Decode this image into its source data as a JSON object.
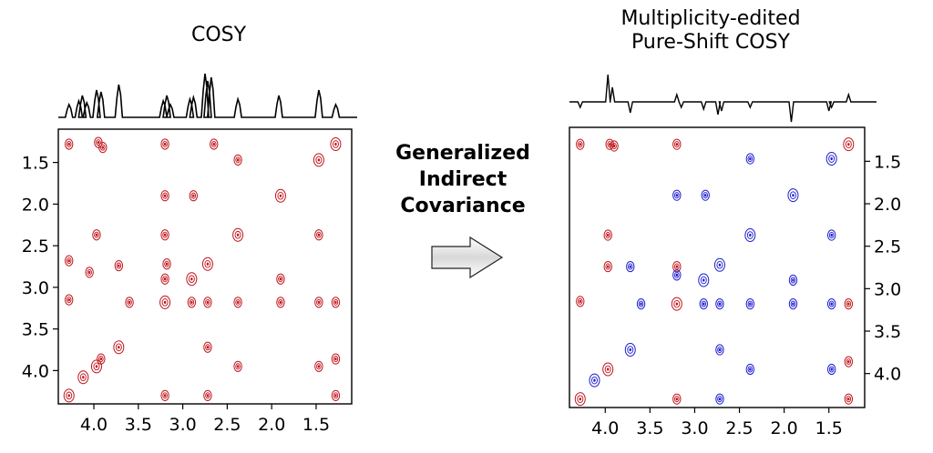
{
  "left_panel": {
    "title": "COSY"
  },
  "right_panel": {
    "title_line1": "Multiplicity-edited",
    "title_line2": "Pure-Shift COSY"
  },
  "center": {
    "line1": "Generalized",
    "line2": "Indirect",
    "line3": "Covariance"
  },
  "colors": {
    "positive": "#c0141b",
    "negative": "#1c1ccf",
    "trace": "#000000"
  },
  "chart_data": [
    {
      "type": "heatmap",
      "title": "COSY",
      "x_ticks": [
        "4.0",
        "3.5",
        "3.0",
        "2.5",
        "2.0",
        "1.5"
      ],
      "y_ticks": [
        "1.5",
        "2.0",
        "2.5",
        "3.0",
        "3.5",
        "4.0"
      ],
      "x_tick_values": [
        4.0,
        3.5,
        3.0,
        2.5,
        2.0,
        1.5
      ],
      "y_tick_values": [
        1.5,
        2.0,
        2.5,
        3.0,
        3.5,
        4.0
      ],
      "xlim": [
        4.4,
        1.1
      ],
      "ylim": [
        1.1,
        4.4
      ],
      "peaks": [
        {
          "x": 4.28,
          "y": 1.28
        },
        {
          "x": 3.95,
          "y": 1.26
        },
        {
          "x": 3.9,
          "y": 1.32
        },
        {
          "x": 3.2,
          "y": 1.28
        },
        {
          "x": 2.65,
          "y": 1.28
        },
        {
          "x": 1.28,
          "y": 1.28
        },
        {
          "x": 2.38,
          "y": 1.47
        },
        {
          "x": 1.47,
          "y": 1.47
        },
        {
          "x": 3.2,
          "y": 1.9
        },
        {
          "x": 2.88,
          "y": 1.9
        },
        {
          "x": 1.9,
          "y": 1.9
        },
        {
          "x": 3.97,
          "y": 2.37
        },
        {
          "x": 3.2,
          "y": 2.37
        },
        {
          "x": 2.38,
          "y": 2.37
        },
        {
          "x": 1.47,
          "y": 2.37
        },
        {
          "x": 4.28,
          "y": 2.68
        },
        {
          "x": 3.72,
          "y": 2.74
        },
        {
          "x": 3.18,
          "y": 2.72
        },
        {
          "x": 2.72,
          "y": 2.72
        },
        {
          "x": 4.05,
          "y": 2.82
        },
        {
          "x": 3.2,
          "y": 2.9
        },
        {
          "x": 2.9,
          "y": 2.9
        },
        {
          "x": 1.9,
          "y": 2.9
        },
        {
          "x": 4.28,
          "y": 3.15
        },
        {
          "x": 3.6,
          "y": 3.18
        },
        {
          "x": 3.2,
          "y": 3.18
        },
        {
          "x": 2.9,
          "y": 3.18
        },
        {
          "x": 2.72,
          "y": 3.18
        },
        {
          "x": 2.38,
          "y": 3.18
        },
        {
          "x": 1.9,
          "y": 3.18
        },
        {
          "x": 1.47,
          "y": 3.18
        },
        {
          "x": 1.28,
          "y": 3.18
        },
        {
          "x": 3.72,
          "y": 3.72
        },
        {
          "x": 2.72,
          "y": 3.72
        },
        {
          "x": 3.92,
          "y": 3.86
        },
        {
          "x": 3.97,
          "y": 3.95
        },
        {
          "x": 2.38,
          "y": 3.95
        },
        {
          "x": 1.47,
          "y": 3.95
        },
        {
          "x": 1.28,
          "y": 3.86
        },
        {
          "x": 4.12,
          "y": 4.08
        },
        {
          "x": 4.28,
          "y": 4.3
        },
        {
          "x": 3.2,
          "y": 4.3
        },
        {
          "x": 2.72,
          "y": 4.3
        },
        {
          "x": 1.28,
          "y": 4.3
        }
      ]
    },
    {
      "type": "heatmap",
      "title": "Multiplicity-edited Pure-Shift COSY",
      "x_ticks": [
        "4.0",
        "3.5",
        "3.0",
        "2.5",
        "2.0",
        "1.5"
      ],
      "y_ticks": [
        "1.5",
        "2.0",
        "2.5",
        "3.0",
        "3.5",
        "4.0"
      ],
      "x_tick_values": [
        4.0,
        3.5,
        3.0,
        2.5,
        2.0,
        1.5
      ],
      "y_tick_values": [
        1.5,
        2.0,
        2.5,
        3.0,
        3.5,
        4.0
      ],
      "xlim": [
        4.4,
        1.1
      ],
      "ylim": [
        1.1,
        4.4
      ],
      "series": [
        {
          "sign": "positive",
          "peaks": [
            {
              "x": 4.28,
              "y": 1.3
            },
            {
              "x": 3.95,
              "y": 1.3
            },
            {
              "x": 3.9,
              "y": 1.32
            },
            {
              "x": 3.2,
              "y": 1.3
            },
            {
              "x": 1.28,
              "y": 1.3
            },
            {
              "x": 3.97,
              "y": 2.37
            },
            {
              "x": 3.97,
              "y": 2.74
            },
            {
              "x": 3.2,
              "y": 2.74
            },
            {
              "x": 4.28,
              "y": 3.15
            },
            {
              "x": 3.2,
              "y": 3.18
            },
            {
              "x": 1.28,
              "y": 3.18
            },
            {
              "x": 3.97,
              "y": 3.95
            },
            {
              "x": 4.28,
              "y": 4.3
            },
            {
              "x": 3.2,
              "y": 4.3
            },
            {
              "x": 1.28,
              "y": 4.3
            },
            {
              "x": 1.28,
              "y": 3.86
            }
          ]
        },
        {
          "sign": "negative",
          "peaks": [
            {
              "x": 2.38,
              "y": 1.47
            },
            {
              "x": 1.47,
              "y": 1.47
            },
            {
              "x": 3.2,
              "y": 1.9
            },
            {
              "x": 2.88,
              "y": 1.9
            },
            {
              "x": 1.9,
              "y": 1.9
            },
            {
              "x": 2.38,
              "y": 2.37
            },
            {
              "x": 1.47,
              "y": 2.37
            },
            {
              "x": 3.72,
              "y": 2.74
            },
            {
              "x": 3.2,
              "y": 2.84
            },
            {
              "x": 2.9,
              "y": 2.9
            },
            {
              "x": 2.72,
              "y": 2.72
            },
            {
              "x": 1.9,
              "y": 2.9
            },
            {
              "x": 3.6,
              "y": 3.18
            },
            {
              "x": 2.9,
              "y": 3.18
            },
            {
              "x": 2.72,
              "y": 3.18
            },
            {
              "x": 2.38,
              "y": 3.18
            },
            {
              "x": 1.9,
              "y": 3.18
            },
            {
              "x": 1.47,
              "y": 3.18
            },
            {
              "x": 3.72,
              "y": 3.72
            },
            {
              "x": 2.72,
              "y": 3.72
            },
            {
              "x": 2.38,
              "y": 3.95
            },
            {
              "x": 1.47,
              "y": 3.95
            },
            {
              "x": 4.12,
              "y": 4.08
            },
            {
              "x": 2.72,
              "y": 4.3
            }
          ]
        }
      ]
    }
  ]
}
